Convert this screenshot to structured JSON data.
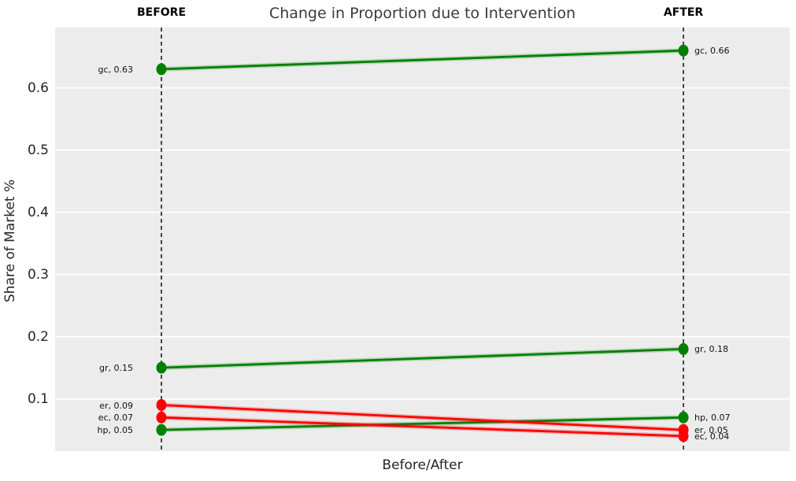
{
  "chart_data": {
    "type": "line",
    "subtype": "slope-before-after",
    "title": "Change in Proportion due to Intervention",
    "xlabel": "Before/After",
    "ylabel": "Share of Market %",
    "categories": [
      "BEFORE",
      "AFTER"
    ],
    "yticks": [
      0.1,
      0.2,
      0.3,
      0.4,
      0.5,
      0.6
    ],
    "ylim": [
      0.016,
      0.697
    ],
    "grid": "horizontal-white-on-gray",
    "legend": "none",
    "plot_bg": "#ececec",
    "colors": {
      "increase": "#008000",
      "decrease": "#fe0000",
      "reference_line": "#000000",
      "gridline": "#ffffff"
    },
    "series": [
      {
        "name": "gc",
        "before": 0.63,
        "after": 0.66,
        "trend": "increase",
        "label_before": "gc, 0.63",
        "label_after": "gc, 0.66"
      },
      {
        "name": "gr",
        "before": 0.15,
        "after": 0.18,
        "trend": "increase",
        "label_before": "gr, 0.15",
        "label_after": "gr, 0.18"
      },
      {
        "name": "er",
        "before": 0.09,
        "after": 0.05,
        "trend": "decrease",
        "label_before": "er, 0.09",
        "label_after": "er, 0.05"
      },
      {
        "name": "ec",
        "before": 0.07,
        "after": 0.04,
        "trend": "decrease",
        "label_before": "ec, 0.07",
        "label_after": "ec, 0.04"
      },
      {
        "name": "hp",
        "before": 0.05,
        "after": 0.07,
        "trend": "increase",
        "label_before": "hp, 0.05",
        "label_after": "hp, 0.07"
      }
    ]
  }
}
